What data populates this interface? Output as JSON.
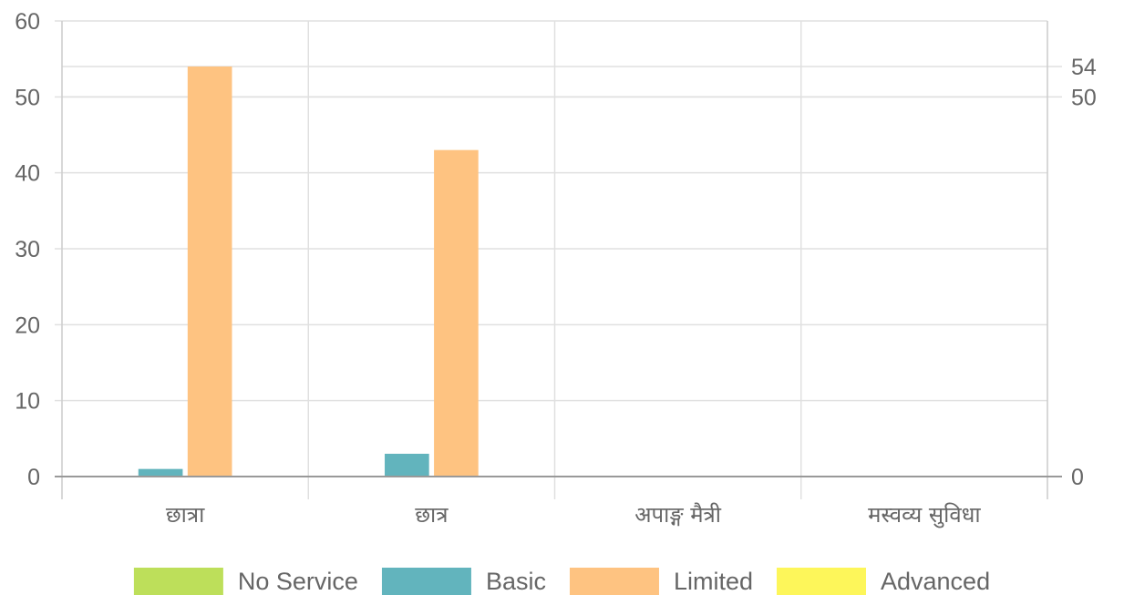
{
  "chart_data": {
    "type": "bar",
    "categories": [
      "छात्रा",
      "छात्र",
      "अपाङ्ग मैत्री",
      "मस्वव्य सुविधा"
    ],
    "series": [
      {
        "name": "No Service",
        "color": "#bddf5a",
        "values": [
          0,
          0,
          0,
          0
        ]
      },
      {
        "name": "Basic",
        "color": "#62b4bd",
        "values": [
          1,
          3,
          0,
          0
        ]
      },
      {
        "name": "Limited",
        "color": "#fec381",
        "values": [
          54,
          43,
          0,
          0
        ]
      },
      {
        "name": "Advanced",
        "color": "#fdf65a",
        "values": [
          0,
          0,
          0,
          0
        ]
      }
    ],
    "ylim": [
      0,
      60
    ],
    "y_ticks": [
      "0",
      "10",
      "20",
      "30",
      "40",
      "50",
      "60"
    ],
    "y_ticks_right": [
      {
        "label": "0",
        "value": 0
      },
      {
        "label": "50",
        "value": 50
      },
      {
        "label": "54",
        "value": 54
      }
    ],
    "grid": true,
    "legend_position": "bottom",
    "title": "",
    "xlabel": "",
    "ylabel": ""
  }
}
